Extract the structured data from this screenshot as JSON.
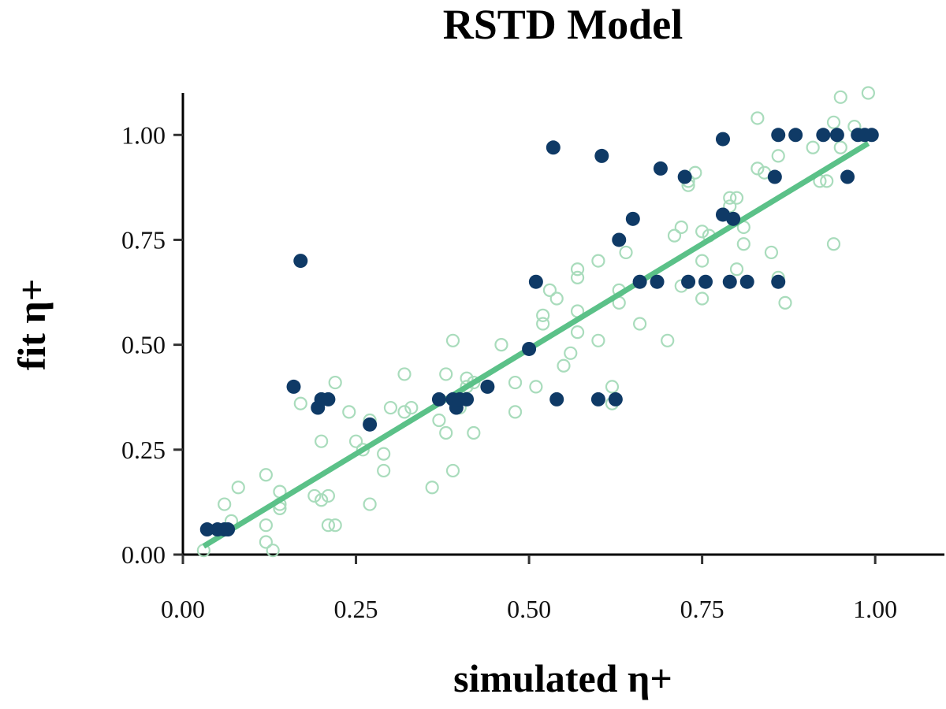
{
  "chart_data": {
    "type": "scatter",
    "title": "RSTD Model",
    "xlabel": "simulated η+",
    "ylabel": "fit η+",
    "xlim": [
      0.0,
      1.1
    ],
    "ylim": [
      0.0,
      1.1
    ],
    "xticks": [
      0.0,
      0.25,
      0.5,
      0.75,
      1.0
    ],
    "yticks": [
      0.0,
      0.25,
      0.5,
      0.75,
      1.0
    ],
    "xtick_labels": [
      "0.00",
      "0.25",
      "0.50",
      "0.75",
      "1.00"
    ],
    "ytick_labels": [
      "0.00",
      "0.25",
      "0.50",
      "0.75",
      "1.00"
    ],
    "grid": false,
    "fit_line": {
      "x": [
        0.03,
        0.99
      ],
      "y": [
        0.02,
        0.98
      ],
      "color": "#5bc188"
    },
    "series": [
      {
        "style": "open-circle",
        "color": "#a9dcbc",
        "points": [
          [
            0.03,
            0.01
          ],
          [
            0.06,
            0.12
          ],
          [
            0.07,
            0.08
          ],
          [
            0.08,
            0.16
          ],
          [
            0.12,
            0.19
          ],
          [
            0.12,
            0.07
          ],
          [
            0.12,
            0.03
          ],
          [
            0.13,
            0.01
          ],
          [
            0.14,
            0.12
          ],
          [
            0.14,
            0.15
          ],
          [
            0.14,
            0.11
          ],
          [
            0.17,
            0.36
          ],
          [
            0.19,
            0.14
          ],
          [
            0.2,
            0.13
          ],
          [
            0.2,
            0.27
          ],
          [
            0.21,
            0.14
          ],
          [
            0.21,
            0.07
          ],
          [
            0.22,
            0.07
          ],
          [
            0.22,
            0.41
          ],
          [
            0.24,
            0.34
          ],
          [
            0.25,
            0.27
          ],
          [
            0.26,
            0.25
          ],
          [
            0.27,
            0.32
          ],
          [
            0.27,
            0.12
          ],
          [
            0.29,
            0.24
          ],
          [
            0.29,
            0.2
          ],
          [
            0.3,
            0.35
          ],
          [
            0.32,
            0.34
          ],
          [
            0.32,
            0.43
          ],
          [
            0.33,
            0.35
          ],
          [
            0.36,
            0.16
          ],
          [
            0.37,
            0.32
          ],
          [
            0.38,
            0.29
          ],
          [
            0.38,
            0.43
          ],
          [
            0.39,
            0.2
          ],
          [
            0.39,
            0.51
          ],
          [
            0.4,
            0.35
          ],
          [
            0.41,
            0.42
          ],
          [
            0.41,
            0.4
          ],
          [
            0.42,
            0.41
          ],
          [
            0.42,
            0.29
          ],
          [
            0.46,
            0.5
          ],
          [
            0.48,
            0.34
          ],
          [
            0.48,
            0.41
          ],
          [
            0.51,
            0.4
          ],
          [
            0.52,
            0.57
          ],
          [
            0.52,
            0.55
          ],
          [
            0.53,
            0.63
          ],
          [
            0.54,
            0.61
          ],
          [
            0.55,
            0.45
          ],
          [
            0.56,
            0.48
          ],
          [
            0.57,
            0.53
          ],
          [
            0.57,
            0.58
          ],
          [
            0.57,
            0.66
          ],
          [
            0.57,
            0.68
          ],
          [
            0.6,
            0.51
          ],
          [
            0.6,
            0.7
          ],
          [
            0.62,
            0.4
          ],
          [
            0.62,
            0.36
          ],
          [
            0.63,
            0.63
          ],
          [
            0.63,
            0.6
          ],
          [
            0.64,
            0.72
          ],
          [
            0.66,
            0.55
          ],
          [
            0.7,
            0.51
          ],
          [
            0.71,
            0.76
          ],
          [
            0.72,
            0.64
          ],
          [
            0.72,
            0.78
          ],
          [
            0.73,
            0.88
          ],
          [
            0.73,
            0.89
          ],
          [
            0.74,
            0.91
          ],
          [
            0.75,
            0.77
          ],
          [
            0.75,
            0.7
          ],
          [
            0.75,
            0.61
          ],
          [
            0.76,
            0.76
          ],
          [
            0.79,
            0.83
          ],
          [
            0.79,
            0.85
          ],
          [
            0.8,
            0.85
          ],
          [
            0.8,
            0.68
          ],
          [
            0.81,
            0.74
          ],
          [
            0.81,
            0.78
          ],
          [
            0.83,
            0.92
          ],
          [
            0.83,
            1.04
          ],
          [
            0.84,
            0.91
          ],
          [
            0.85,
            0.72
          ],
          [
            0.86,
            0.66
          ],
          [
            0.86,
            0.95
          ],
          [
            0.87,
            0.6
          ],
          [
            0.91,
            0.97
          ],
          [
            0.92,
            0.89
          ],
          [
            0.93,
            0.89
          ],
          [
            0.94,
            0.74
          ],
          [
            0.94,
            1.03
          ],
          [
            0.95,
            0.97
          ],
          [
            0.95,
            1.09
          ],
          [
            0.97,
            1.02
          ],
          [
            0.98,
            1.0
          ],
          [
            0.99,
            1.1
          ]
        ]
      },
      {
        "style": "filled-circle",
        "color": "#0f3a66",
        "points": [
          [
            0.035,
            0.06
          ],
          [
            0.05,
            0.06
          ],
          [
            0.06,
            0.06
          ],
          [
            0.065,
            0.06
          ],
          [
            0.16,
            0.4
          ],
          [
            0.17,
            0.7
          ],
          [
            0.195,
            0.35
          ],
          [
            0.2,
            0.37
          ],
          [
            0.21,
            0.37
          ],
          [
            0.27,
            0.31
          ],
          [
            0.37,
            0.37
          ],
          [
            0.39,
            0.37
          ],
          [
            0.395,
            0.35
          ],
          [
            0.4,
            0.37
          ],
          [
            0.41,
            0.37
          ],
          [
            0.44,
            0.4
          ],
          [
            0.5,
            0.49
          ],
          [
            0.51,
            0.65
          ],
          [
            0.535,
            0.97
          ],
          [
            0.54,
            0.37
          ],
          [
            0.6,
            0.37
          ],
          [
            0.605,
            0.95
          ],
          [
            0.625,
            0.37
          ],
          [
            0.63,
            0.75
          ],
          [
            0.65,
            0.8
          ],
          [
            0.66,
            0.65
          ],
          [
            0.685,
            0.65
          ],
          [
            0.69,
            0.92
          ],
          [
            0.725,
            0.9
          ],
          [
            0.73,
            0.65
          ],
          [
            0.755,
            0.65
          ],
          [
            0.78,
            0.81
          ],
          [
            0.78,
            0.99
          ],
          [
            0.79,
            0.65
          ],
          [
            0.795,
            0.8
          ],
          [
            0.815,
            0.65
          ],
          [
            0.855,
            0.9
          ],
          [
            0.86,
            1.0
          ],
          [
            0.86,
            0.65
          ],
          [
            0.885,
            1.0
          ],
          [
            0.925,
            1.0
          ],
          [
            0.945,
            1.0
          ],
          [
            0.96,
            0.9
          ],
          [
            0.975,
            1.0
          ],
          [
            0.985,
            1.0
          ],
          [
            0.995,
            1.0
          ]
        ]
      }
    ]
  }
}
